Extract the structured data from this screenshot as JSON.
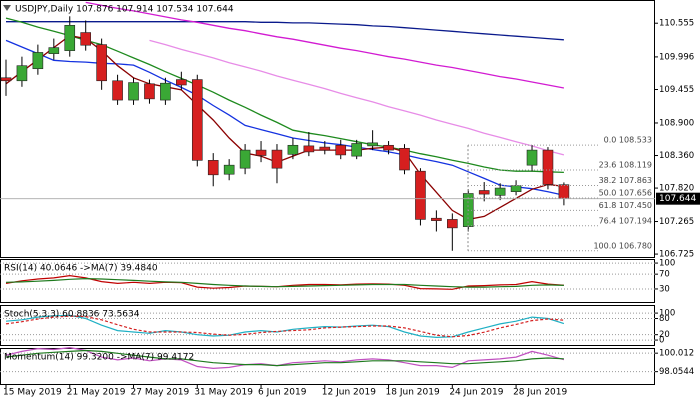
{
  "chart_data": [
    {
      "type": "candlestick",
      "title": "USDJPY,Daily  107.876 107.914 107.534 107.644",
      "categories": [
        "15 May 2019",
        null,
        null,
        null,
        "21 May 2019",
        null,
        null,
        null,
        "27 May 2019",
        null,
        null,
        null,
        "31 May 2019",
        null,
        null,
        null,
        "6 Jun 2019",
        null,
        null,
        null,
        "12 Jun 2019",
        null,
        null,
        null,
        "18 Jun 2019",
        null,
        null,
        null,
        "24 Jun 2019",
        null,
        null,
        null,
        "28 Jun 2019",
        null,
        null,
        null
      ],
      "open": [
        109.65,
        109.6,
        109.8,
        110.05,
        110.1,
        110.4,
        110.2,
        109.6,
        109.28,
        109.55,
        109.28,
        109.62,
        109.62,
        108.28,
        108.05,
        108.15,
        108.45,
        108.45,
        108.38,
        108.52,
        108.5,
        108.53,
        108.35,
        108.52,
        108.53,
        108.48,
        108.1,
        107.32,
        107.3,
        107.18,
        107.78,
        107.7,
        107.76,
        108.2,
        108.45,
        107.876
      ],
      "high": [
        109.95,
        110.0,
        110.2,
        110.3,
        110.67,
        110.6,
        110.3,
        109.7,
        109.65,
        109.62,
        109.65,
        109.75,
        109.7,
        108.4,
        108.3,
        108.55,
        108.6,
        108.55,
        108.65,
        108.75,
        108.6,
        108.62,
        108.62,
        108.78,
        108.6,
        108.55,
        108.15,
        107.45,
        107.4,
        107.8,
        107.92,
        107.9,
        107.95,
        108.533,
        108.5,
        107.914
      ],
      "low": [
        109.35,
        109.5,
        109.7,
        109.95,
        110.0,
        110.1,
        109.45,
        109.2,
        109.2,
        109.22,
        109.2,
        109.45,
        108.18,
        107.85,
        107.95,
        108.05,
        108.25,
        107.9,
        108.3,
        108.35,
        108.38,
        108.3,
        108.3,
        108.45,
        108.38,
        108.05,
        107.2,
        107.1,
        106.78,
        107.1,
        107.6,
        107.62,
        107.7,
        108.1,
        107.8,
        107.534
      ],
      "close": [
        109.6,
        109.85,
        110.07,
        110.15,
        110.52,
        110.19,
        109.6,
        109.28,
        109.57,
        109.3,
        109.56,
        109.53,
        108.28,
        108.04,
        108.2,
        108.45,
        108.36,
        108.15,
        108.53,
        108.42,
        108.45,
        108.37,
        108.56,
        108.57,
        108.45,
        108.12,
        107.3,
        107.28,
        107.16,
        107.73,
        107.72,
        107.82,
        107.86,
        108.45,
        107.88,
        107.644
      ],
      "up_color": "#3aa835",
      "down_color": "#d61f1f",
      "overlays": [
        {
          "color": "#0a1a8c",
          "values": [
            110.58,
            110.58,
            110.58,
            110.58,
            110.58,
            110.58,
            110.58,
            110.58,
            110.58,
            110.58,
            110.58,
            110.58,
            110.58,
            110.58,
            110.58,
            110.58,
            110.57,
            110.57,
            110.56,
            110.56,
            110.55,
            110.54,
            110.53,
            110.51,
            110.5,
            110.48,
            110.46,
            110.44,
            110.42,
            110.4,
            110.38,
            110.36,
            110.34,
            110.32,
            110.3,
            110.28
          ]
        },
        {
          "color": "#d21bd2",
          "values": [
            null,
            null,
            null,
            null,
            null,
            110.9,
            110.85,
            110.8,
            110.76,
            110.71,
            110.66,
            110.61,
            110.57,
            110.52,
            110.47,
            110.43,
            110.38,
            110.33,
            110.29,
            110.24,
            110.19,
            110.14,
            110.1,
            110.05,
            110.0,
            109.96,
            109.91,
            109.86,
            109.82,
            109.77,
            109.72,
            109.67,
            109.63,
            109.58,
            109.53,
            109.48
          ]
        },
        {
          "color": "#e78ce7",
          "values": [
            null,
            null,
            null,
            null,
            null,
            null,
            null,
            null,
            null,
            110.27,
            110.2,
            110.12,
            110.05,
            109.98,
            109.9,
            109.83,
            109.76,
            109.68,
            109.61,
            109.54,
            109.47,
            109.39,
            109.32,
            109.25,
            109.17,
            109.1,
            109.03,
            108.95,
            108.88,
            108.81,
            108.73,
            108.66,
            108.59,
            108.52,
            108.44,
            108.37
          ]
        },
        {
          "color": "#1e8a1e",
          "values": [
            110.64,
            110.57,
            110.49,
            110.42,
            110.35,
            110.27,
            110.2,
            110.09,
            109.98,
            109.87,
            109.75,
            109.64,
            109.53,
            109.41,
            109.28,
            109.16,
            109.03,
            108.91,
            108.78,
            108.73,
            108.69,
            108.64,
            108.59,
            108.54,
            108.5,
            108.45,
            108.39,
            108.34,
            108.28,
            108.23,
            108.17,
            108.12,
            108.1,
            108.1,
            108.09,
            108.08
          ]
        },
        {
          "color": "#1432e0",
          "values": [
            110.27,
            110.16,
            110.05,
            109.94,
            109.92,
            109.91,
            109.89,
            109.88,
            109.86,
            109.74,
            109.61,
            109.49,
            109.36,
            109.19,
            109.03,
            108.86,
            108.79,
            108.72,
            108.65,
            108.61,
            108.57,
            108.54,
            108.5,
            108.46,
            108.42,
            108.37,
            108.31,
            108.26,
            108.2,
            108.09,
            107.98,
            107.87,
            107.84,
            107.81,
            107.76,
            107.7
          ]
        },
        {
          "color": "#8b0000",
          "values": [
            109.55,
            109.75,
            109.95,
            110.15,
            110.35,
            110.3,
            110.1,
            109.85,
            109.65,
            109.55,
            109.5,
            109.45,
            109.2,
            108.95,
            108.65,
            108.4,
            108.35,
            108.25,
            108.35,
            108.45,
            108.45,
            108.45,
            108.45,
            108.48,
            108.5,
            108.42,
            108.05,
            107.75,
            107.45,
            107.3,
            107.35,
            107.5,
            107.65,
            107.8,
            107.88,
            107.85
          ]
        }
      ],
      "fib_levels": [
        {
          "text": "0.0 108.533",
          "value": 108.533
        },
        {
          "text": "23.6 108.119",
          "value": 108.119
        },
        {
          "text": "38.2 107.863",
          "value": 107.863
        },
        {
          "text": "50.0 107.656",
          "value": 107.656
        },
        {
          "text": "61.8 107.450",
          "value": 107.45
        },
        {
          "text": "76.4 107.194",
          "value": 107.194
        },
        {
          "text": "100.0 106.780",
          "value": 106.78
        }
      ],
      "last_price": 107.644,
      "ylim": [
        106.66,
        110.94
      ],
      "yticks": [
        110.555,
        109.996,
        109.455,
        {
          "value": 108.9,
          "label": "108.900"
        },
        {
          "value": 108.36,
          "label": "108.360"
        },
        {
          "value": 107.82,
          "label": "107.820"
        },
        107.265,
        106.725
      ],
      "grid": false
    },
    {
      "type": "line",
      "title": "RSI(14) 40.0646 ->MA(7) 39.4840",
      "series": [
        {
          "color": "#c00000",
          "values": [
            45,
            52,
            57,
            60,
            66,
            60,
            50,
            45,
            48,
            45,
            48,
            47,
            35,
            32,
            34,
            38,
            37,
            36,
            40,
            42,
            42,
            41,
            43,
            44,
            43,
            40,
            31,
            30,
            29,
            38,
            39,
            41,
            42,
            50,
            43,
            40.06
          ]
        },
        {
          "color": "#1e7a1e",
          "values": [
            48,
            49,
            51,
            53,
            56,
            58,
            57,
            55,
            53,
            51,
            49,
            48,
            45,
            42,
            40,
            38,
            37,
            36,
            37,
            38,
            39,
            40,
            41,
            42,
            42,
            42,
            40,
            38,
            36,
            35,
            35,
            36,
            37,
            40,
            41,
            39.48
          ]
        }
      ],
      "ylim": [
        -8,
        111
      ],
      "yticks": [
        30,
        70,
        100
      ],
      "grid": true
    },
    {
      "type": "line",
      "title": "Stoch(5,3,3) 60.8836 73.5634",
      "series": [
        {
          "color": "#1fb0c4",
          "values": [
            70,
            75,
            85,
            90,
            92,
            80,
            55,
            35,
            30,
            25,
            35,
            30,
            20,
            15,
            18,
            30,
            35,
            30,
            40,
            45,
            50,
            48,
            52,
            55,
            50,
            30,
            15,
            10,
            12,
            30,
            45,
            60,
            70,
            85,
            80,
            60.88
          ]
        },
        {
          "color": "#d42020",
          "dash": true,
          "values": [
            60,
            68,
            78,
            85,
            89,
            87,
            75,
            57,
            40,
            30,
            30,
            30,
            28,
            22,
            18,
            21,
            28,
            32,
            35,
            38,
            45,
            48,
            50,
            52,
            52,
            45,
            32,
            18,
            12,
            17,
            29,
            45,
            58,
            72,
            78,
            73.56
          ]
        }
      ],
      "ylim": [
        -22,
        130
      ],
      "yticks": [
        0,
        20,
        80,
        100
      ],
      "grid": true
    },
    {
      "type": "line",
      "title": "Momentum(14) 99.3200 ->MA(7) 99.4172",
      "series": [
        {
          "color": "#c050c0",
          "values": [
            99.8,
            100.2,
            100.5,
            100.4,
            100.6,
            100.3,
            99.6,
            99.3,
            99.5,
            99.2,
            99.4,
            99.3,
            98.6,
            98.4,
            98.5,
            98.8,
            98.9,
            98.7,
            99.0,
            99.1,
            99.2,
            99.1,
            99.3,
            99.4,
            99.3,
            99.0,
            98.7,
            98.7,
            98.5,
            99.2,
            99.3,
            99.4,
            99.6,
            100.2,
            99.8,
            99.32
          ]
        },
        {
          "color": "#1e7a1e",
          "values": [
            99.6,
            99.8,
            100.0,
            100.1,
            100.2,
            100.3,
            100.2,
            100.0,
            99.8,
            99.6,
            99.4,
            99.4,
            99.2,
            99.0,
            98.9,
            98.8,
            98.8,
            98.7,
            98.8,
            98.9,
            99.0,
            99.0,
            99.1,
            99.2,
            99.2,
            99.2,
            99.1,
            99.0,
            98.9,
            98.9,
            99.0,
            99.1,
            99.2,
            99.4,
            99.5,
            99.42
          ]
        }
      ],
      "ylim": [
        96.64,
        100.56
      ],
      "yticks": [
        {
          "value": 98.0544,
          "label": "98.0544"
        },
        100.012
      ],
      "grid": true
    }
  ]
}
